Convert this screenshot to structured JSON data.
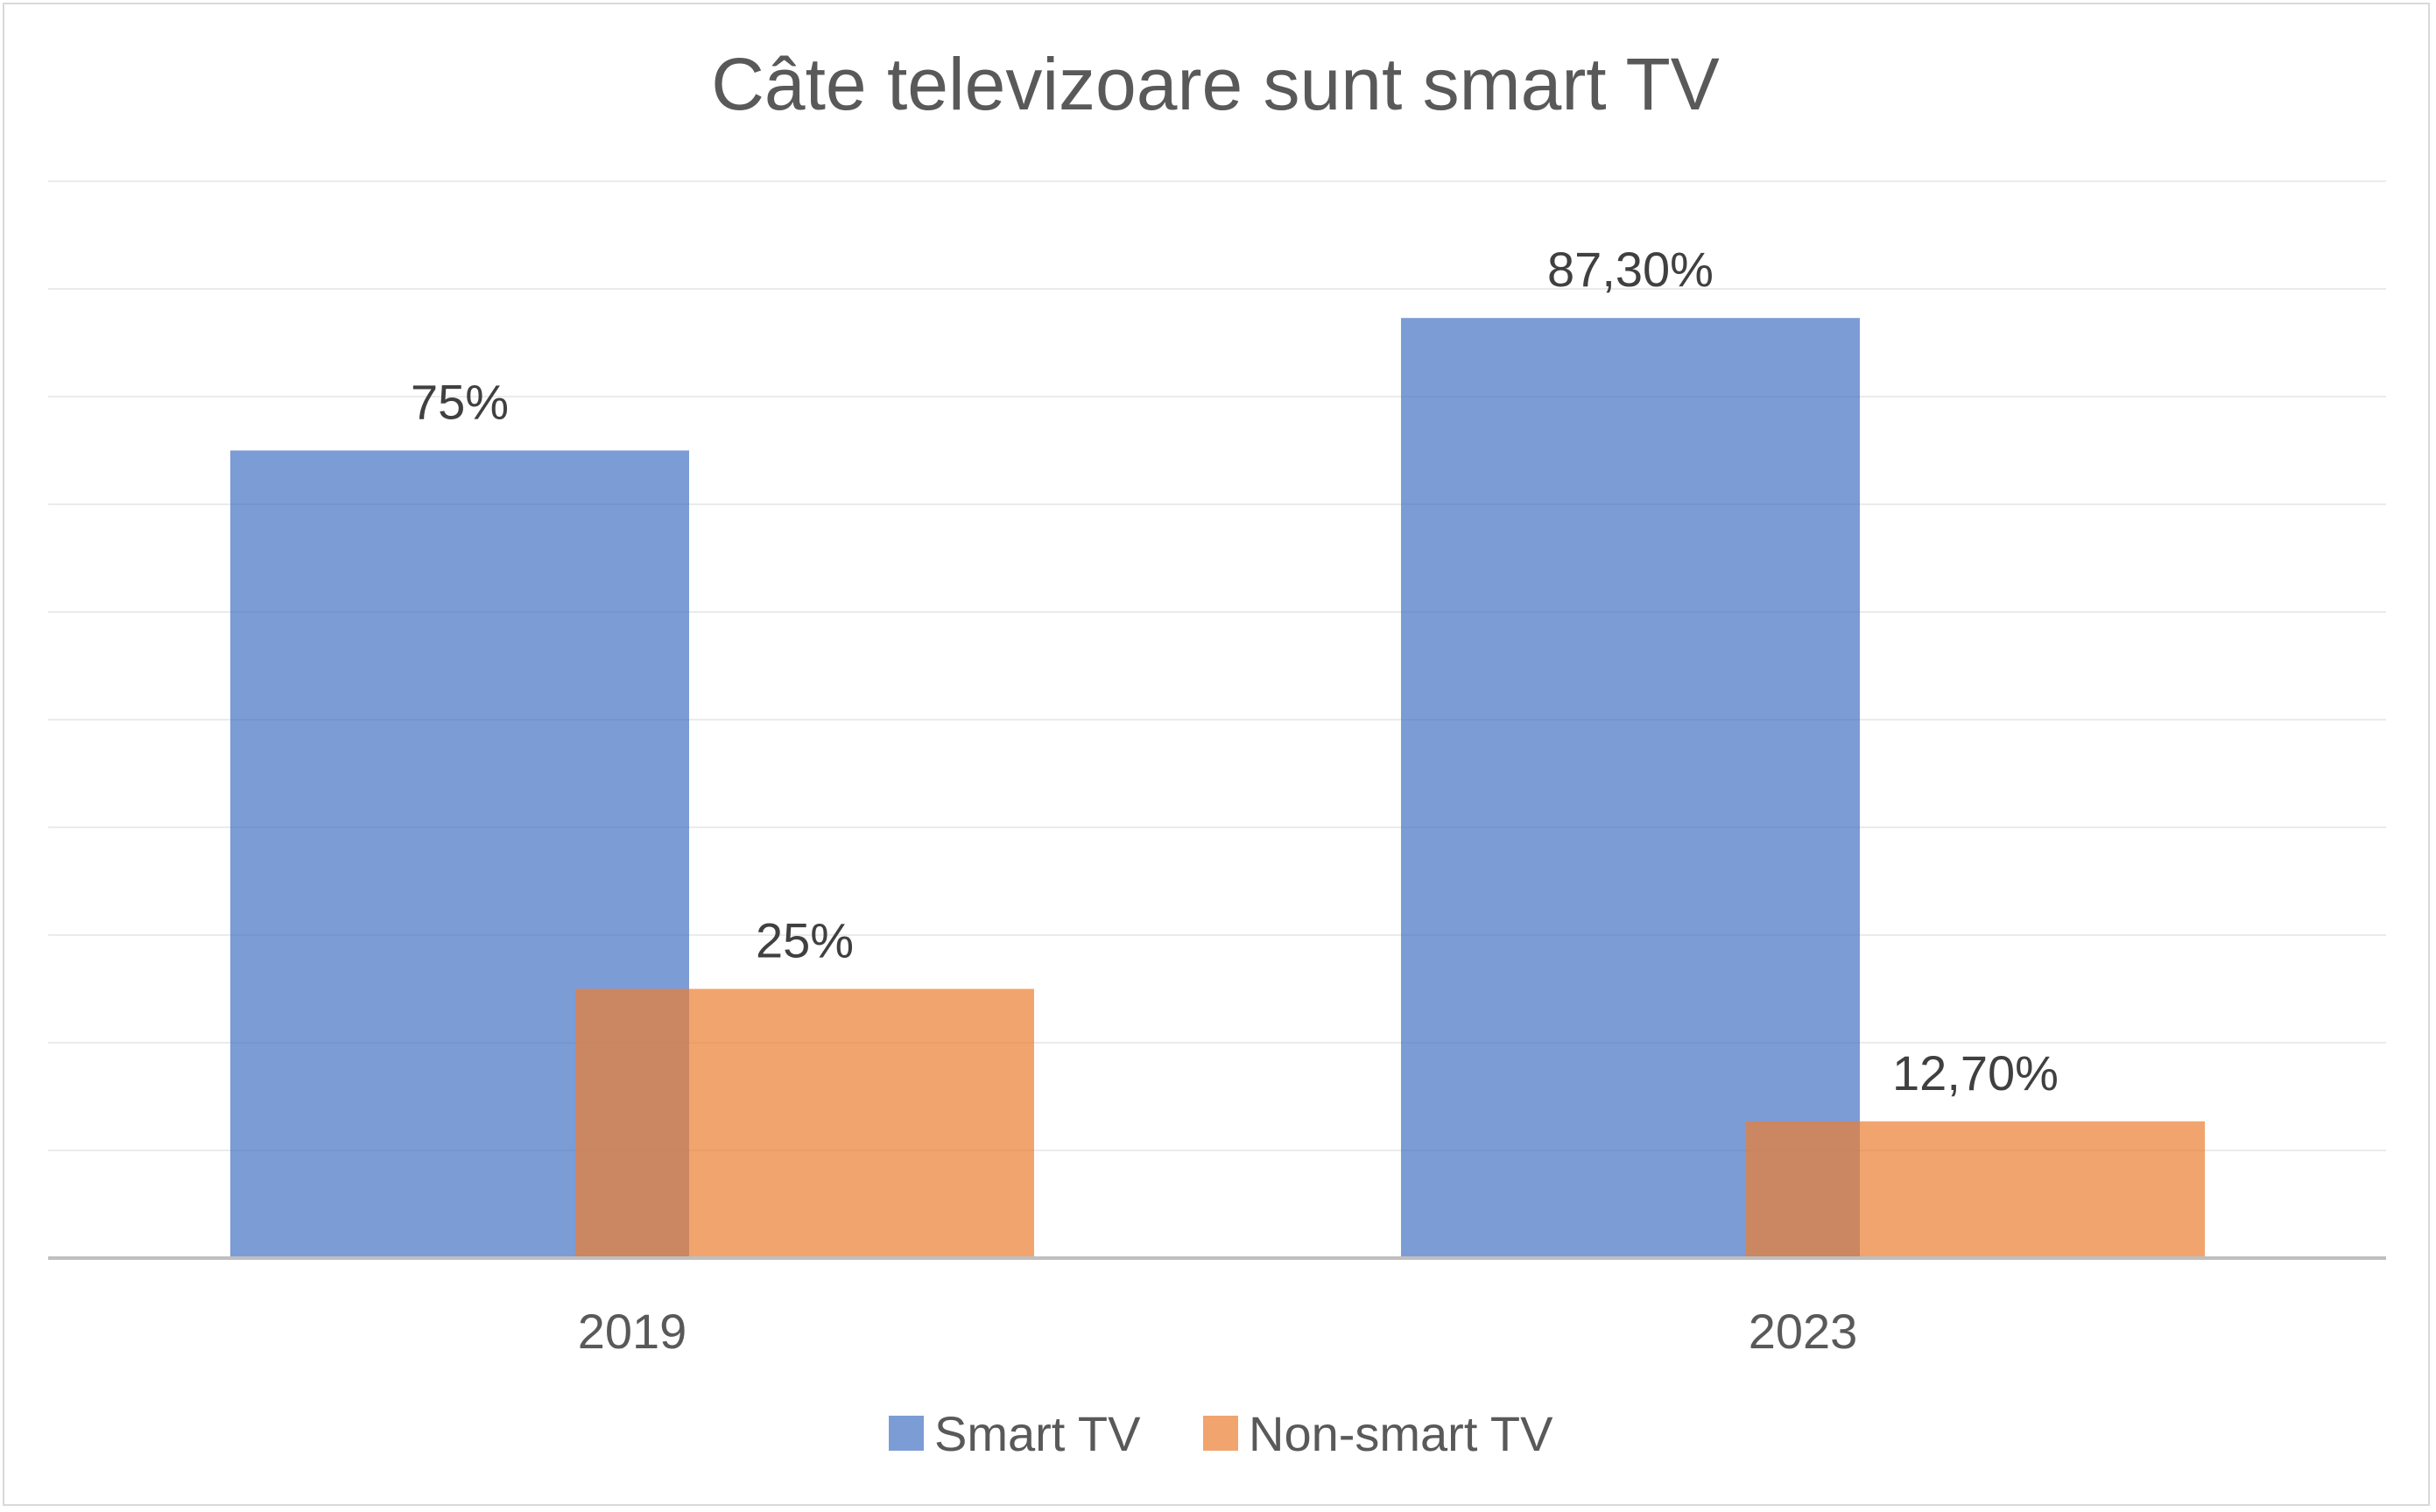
{
  "chart_data": {
    "type": "bar",
    "title": "Câte televizoare sunt smart TV",
    "xlabel": "",
    "ylabel": "",
    "categories": [
      "2019",
      "2023"
    ],
    "series": [
      {
        "name": "Smart TV",
        "values": [
          75,
          87.3
        ],
        "labels": [
          "75%",
          "87,30%"
        ],
        "color": "#4472C4"
      },
      {
        "name": "Non-smart TV",
        "values": [
          25,
          12.7
        ],
        "labels": [
          "25%",
          "12,70%"
        ],
        "color": "#ED7D31"
      }
    ],
    "ylim": [
      0,
      100
    ],
    "gridlines": true,
    "bars_overlap": true,
    "y_axis_labels_shown": false,
    "legend_position": "bottom"
  }
}
